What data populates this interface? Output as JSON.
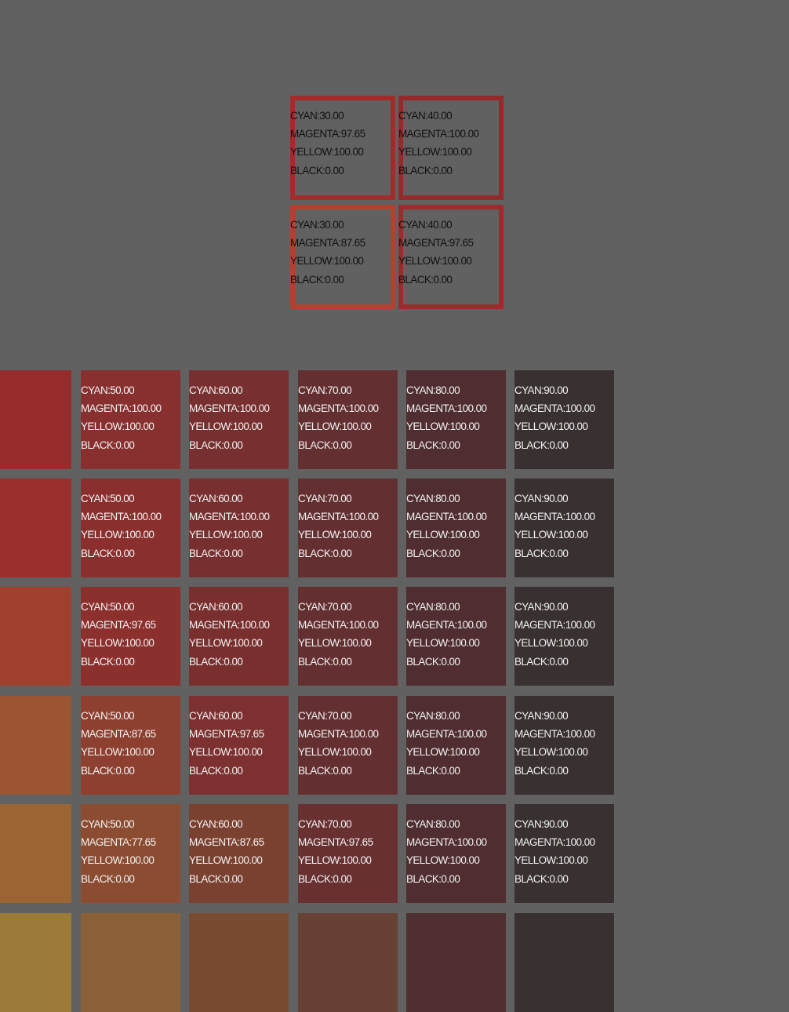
{
  "top_swatches": [
    {
      "color": "#a32c2b",
      "cyan": "CYAN:30.00",
      "magenta": "MAGENTA:97.65",
      "yellow": "YELLOW:100.00",
      "black": "BLACK:0.00"
    },
    {
      "color": "#962a2b",
      "cyan": "CYAN:40.00",
      "magenta": "MAGENTA:100.00",
      "yellow": "YELLOW:100.00",
      "black": "BLACK:0.00"
    },
    {
      "color": "#b1432e",
      "cyan": "CYAN:30.00",
      "magenta": "MAGENTA:87.65",
      "yellow": "YELLOW:100.00",
      "black": "BLACK:0.00"
    },
    {
      "color": "#9b2c2b",
      "cyan": "CYAN:40.00",
      "magenta": "MAGENTA:97.65",
      "yellow": "YELLOW:100.00",
      "black": "BLACK:0.00"
    }
  ],
  "grid_rows": [
    [
      {
        "color": "#962d2c"
      },
      {
        "color": "#88302f",
        "cyan": "CYAN:50.00",
        "magenta": "MAGENTA:100.00",
        "yellow": "YELLOW:100.00",
        "black": "BLACK:0.00"
      },
      {
        "color": "#782f2f",
        "cyan": "CYAN:60.00",
        "magenta": "MAGENTA:100.00",
        "yellow": "YELLOW:100.00",
        "black": "BLACK:0.00"
      },
      {
        "color": "#642f31",
        "cyan": "CYAN:70.00",
        "magenta": "MAGENTA:100.00",
        "yellow": "YELLOW:100.00",
        "black": "BLACK:0.00"
      },
      {
        "color": "#4f2d31",
        "cyan": "CYAN:80.00",
        "magenta": "MAGENTA:100.00",
        "yellow": "YELLOW:100.00",
        "black": "BLACK:0.00"
      },
      {
        "color": "#383031",
        "cyan": "CYAN:90.00",
        "magenta": "MAGENTA:100.00",
        "yellow": "YELLOW:100.00",
        "black": "BLACK:0.00"
      }
    ],
    [
      {
        "color": "#9a2e2c"
      },
      {
        "color": "#8a2f2e",
        "cyan": "CYAN:50.00",
        "magenta": "MAGENTA:100.00",
        "yellow": "YELLOW:100.00",
        "black": "BLACK:0.00"
      },
      {
        "color": "#782f2f",
        "cyan": "CYAN:60.00",
        "magenta": "MAGENTA:100.00",
        "yellow": "YELLOW:100.00",
        "black": "BLACK:0.00"
      },
      {
        "color": "#642f31",
        "cyan": "CYAN:70.00",
        "magenta": "MAGENTA:100.00",
        "yellow": "YELLOW:100.00",
        "black": "BLACK:0.00"
      },
      {
        "color": "#4f2d31",
        "cyan": "CYAN:80.00",
        "magenta": "MAGENTA:100.00",
        "yellow": "YELLOW:100.00",
        "black": "BLACK:0.00"
      },
      {
        "color": "#383031",
        "cyan": "CYAN:90.00",
        "magenta": "MAGENTA:100.00",
        "yellow": "YELLOW:100.00",
        "black": "BLACK:0.00"
      }
    ],
    [
      {
        "color": "#a0402e"
      },
      {
        "color": "#8c302e",
        "cyan": "CYAN:50.00",
        "magenta": "MAGENTA:97.65",
        "yellow": "YELLOW:100.00",
        "black": "BLACK:0.00"
      },
      {
        "color": "#7a2f2f",
        "cyan": "CYAN:60.00",
        "magenta": "MAGENTA:100.00",
        "yellow": "YELLOW:100.00",
        "black": "BLACK:0.00"
      },
      {
        "color": "#642f31",
        "cyan": "CYAN:70.00",
        "magenta": "MAGENTA:100.00",
        "yellow": "YELLOW:100.00",
        "black": "BLACK:0.00"
      },
      {
        "color": "#4f2d31",
        "cyan": "CYAN:80.00",
        "magenta": "MAGENTA:100.00",
        "yellow": "YELLOW:100.00",
        "black": "BLACK:0.00"
      },
      {
        "color": "#383031",
        "cyan": "CYAN:90.00",
        "magenta": "MAGENTA:100.00",
        "yellow": "YELLOW:100.00",
        "black": "BLACK:0.00"
      }
    ],
    [
      {
        "color": "#9b5533"
      },
      {
        "color": "#8d4030",
        "cyan": "CYAN:50.00",
        "magenta": "MAGENTA:87.65",
        "yellow": "YELLOW:100.00",
        "black": "BLACK:0.00"
      },
      {
        "color": "#7c302f",
        "cyan": "CYAN:60.00",
        "magenta": "MAGENTA:97.65",
        "yellow": "YELLOW:100.00",
        "black": "BLACK:0.00"
      },
      {
        "color": "#642f31",
        "cyan": "CYAN:70.00",
        "magenta": "MAGENTA:100.00",
        "yellow": "YELLOW:100.00",
        "black": "BLACK:0.00"
      },
      {
        "color": "#4f2d31",
        "cyan": "CYAN:80.00",
        "magenta": "MAGENTA:100.00",
        "yellow": "YELLOW:100.00",
        "black": "BLACK:0.00"
      },
      {
        "color": "#383031",
        "cyan": "CYAN:90.00",
        "magenta": "MAGENTA:100.00",
        "yellow": "YELLOW:100.00",
        "black": "BLACK:0.00"
      }
    ],
    [
      {
        "color": "#9a6433"
      },
      {
        "color": "#8c4c31",
        "cyan": "CYAN:50.00",
        "magenta": "MAGENTA:77.65",
        "yellow": "YELLOW:100.00",
        "black": "BLACK:0.00"
      },
      {
        "color": "#7b4130",
        "cyan": "CYAN:60.00",
        "magenta": "MAGENTA:87.65",
        "yellow": "YELLOW:100.00",
        "black": "BLACK:0.00"
      },
      {
        "color": "#683031",
        "cyan": "CYAN:70.00",
        "magenta": "MAGENTA:97.65",
        "yellow": "YELLOW:100.00",
        "black": "BLACK:0.00"
      },
      {
        "color": "#4f2d31",
        "cyan": "CYAN:80.00",
        "magenta": "MAGENTA:100.00",
        "yellow": "YELLOW:100.00",
        "black": "BLACK:0.00"
      },
      {
        "color": "#383031",
        "cyan": "CYAN:90.00",
        "magenta": "MAGENTA:100.00",
        "yellow": "YELLOW:100.00",
        "black": "BLACK:0.00"
      }
    ],
    [
      {
        "color": "#9c7a38"
      },
      {
        "color": "#8c6037"
      },
      {
        "color": "#7a4b33"
      },
      {
        "color": "#674133"
      },
      {
        "color": "#4f2f31"
      },
      {
        "color": "#383031"
      }
    ]
  ]
}
